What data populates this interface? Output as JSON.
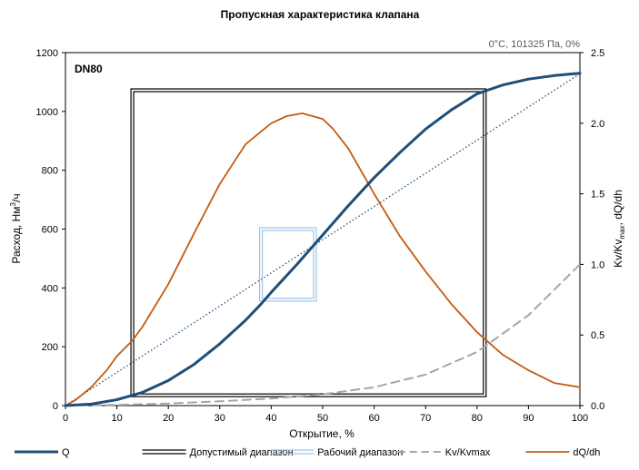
{
  "chart_data": {
    "type": "line",
    "title": "Пропускная характеристика клапана",
    "conditions": "0°C, 101325 Па, 0%",
    "panel_label": "DN80",
    "xlabel": "Открытие, %",
    "ylabel": "Расход, Нм³/ч",
    "ylabel_parts": {
      "a": "Расход, Нм",
      "sup": "3",
      "b": "/ч"
    },
    "y2label": "Kv/Kvmax, dQ/dh",
    "y2label_parts": {
      "a": "Kv/Kv",
      "sub": "max",
      "b": ", dQ/dh"
    },
    "xlim": [
      0,
      100
    ],
    "ylim": [
      0,
      1200
    ],
    "y2lim": [
      0,
      2.5
    ],
    "x_ticks": [
      0,
      10,
      20,
      30,
      40,
      50,
      60,
      70,
      80,
      90,
      100
    ],
    "y_ticks": [
      0,
      200,
      400,
      600,
      800,
      1000,
      1200
    ],
    "y2_ticks": [
      "0.0",
      "0.5",
      "1.0",
      "1.5",
      "2.0",
      "2.5"
    ],
    "grid": false,
    "legend_position": "bottom",
    "series": [
      {
        "name": "Q",
        "axis": "left",
        "color": "#1f4e79",
        "style": "solid-thick",
        "points": [
          [
            0,
            0
          ],
          [
            5,
            5
          ],
          [
            10,
            20
          ],
          [
            13,
            35
          ],
          [
            15,
            45
          ],
          [
            20,
            85
          ],
          [
            25,
            140
          ],
          [
            30,
            210
          ],
          [
            35,
            290
          ],
          [
            38,
            345
          ],
          [
            40,
            385
          ],
          [
            45,
            480
          ],
          [
            50,
            580
          ],
          [
            55,
            680
          ],
          [
            60,
            775
          ],
          [
            65,
            860
          ],
          [
            70,
            940
          ],
          [
            75,
            1005
          ],
          [
            80,
            1060
          ],
          [
            82,
            1072
          ],
          [
            85,
            1090
          ],
          [
            90,
            1110
          ],
          [
            95,
            1122
          ],
          [
            100,
            1130
          ]
        ]
      },
      {
        "name": "Допустимый диапазон",
        "axis": "left",
        "color": "#000000",
        "style": "double-rect",
        "rect": {
          "x": [
            13,
            81.5
          ],
          "y": [
            35,
            1072
          ]
        }
      },
      {
        "name": "Рабочий диапазон",
        "axis": "left",
        "color": "#9dc3e6",
        "style": "double-rect",
        "rect": {
          "x": [
            38,
            48.5
          ],
          "y": [
            360,
            600
          ]
        }
      },
      {
        "name": "Kv/Kvmax",
        "axis": "right",
        "color": "#a6a6a6",
        "style": "dashed",
        "points": [
          [
            0,
            0
          ],
          [
            10,
            0.005
          ],
          [
            20,
            0.015
          ],
          [
            30,
            0.03
          ],
          [
            40,
            0.05
          ],
          [
            50,
            0.08
          ],
          [
            60,
            0.13
          ],
          [
            70,
            0.22
          ],
          [
            80,
            0.38
          ],
          [
            90,
            0.64
          ],
          [
            100,
            1.0
          ]
        ]
      },
      {
        "name": "dQ/dh",
        "axis": "right",
        "color": "#c55a11",
        "style": "solid",
        "points": [
          [
            0,
            0
          ],
          [
            2,
            0.04
          ],
          [
            5,
            0.13
          ],
          [
            8,
            0.25
          ],
          [
            10,
            0.35
          ],
          [
            13,
            0.46
          ],
          [
            15,
            0.56
          ],
          [
            20,
            0.86
          ],
          [
            25,
            1.22
          ],
          [
            30,
            1.57
          ],
          [
            35,
            1.85
          ],
          [
            40,
            2.0
          ],
          [
            43,
            2.05
          ],
          [
            46,
            2.07
          ],
          [
            50,
            2.03
          ],
          [
            52,
            1.96
          ],
          [
            55,
            1.82
          ],
          [
            60,
            1.5
          ],
          [
            65,
            1.2
          ],
          [
            70,
            0.95
          ],
          [
            75,
            0.72
          ],
          [
            80,
            0.52
          ],
          [
            85,
            0.36
          ],
          [
            90,
            0.25
          ],
          [
            95,
            0.16
          ],
          [
            100,
            0.13
          ]
        ]
      },
      {
        "name": "",
        "axis": "right",
        "color": "#1f4e79",
        "style": "dotted",
        "points": [
          [
            0,
            0
          ],
          [
            100,
            2.35
          ]
        ]
      }
    ]
  }
}
